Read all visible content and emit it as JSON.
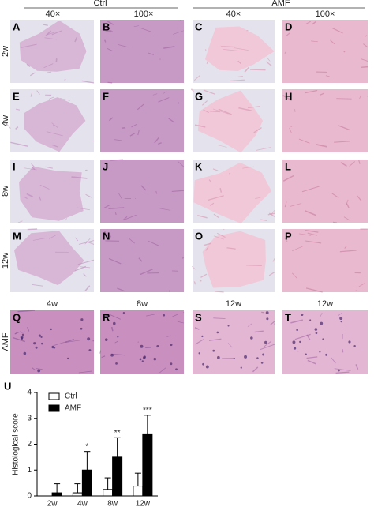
{
  "header": {
    "groups": [
      {
        "label": "Ctrl",
        "magnifications": [
          "40×",
          "100×"
        ]
      },
      {
        "label": "AMF",
        "magnifications": [
          "40×",
          "100×"
        ]
      }
    ]
  },
  "rows": [
    {
      "label": "2w",
      "panels": [
        "A",
        "B",
        "C",
        "D"
      ]
    },
    {
      "label": "4w",
      "panels": [
        "E",
        "F",
        "G",
        "H"
      ]
    },
    {
      "label": "8w",
      "panels": [
        "I",
        "J",
        "K",
        "L"
      ]
    },
    {
      "label": "12w",
      "panels": [
        "M",
        "N",
        "O",
        "P"
      ]
    },
    {
      "label": "AMF",
      "columns": [
        "4w",
        "8w",
        "12w",
        "12w"
      ],
      "panels": [
        "Q",
        "R",
        "S",
        "T"
      ]
    }
  ],
  "chart_data": {
    "type": "bar",
    "panel_label": "U",
    "ylabel": "Histological score",
    "categories": [
      "2w",
      "4w",
      "8w",
      "12w"
    ],
    "series": [
      {
        "name": "Ctrl",
        "color": "#ffffff",
        "values": [
          0,
          0.12,
          0.25,
          0.38
        ],
        "errors": [
          0,
          0.35,
          0.45,
          0.5
        ]
      },
      {
        "name": "AMF",
        "color": "#000000",
        "values": [
          0.12,
          1.0,
          1.5,
          2.4
        ],
        "errors": [
          0.35,
          0.72,
          0.75,
          0.72
        ],
        "significance": [
          null,
          "*",
          "**",
          "***"
        ]
      }
    ],
    "ylim": [
      0,
      4
    ],
    "yticks": [
      0,
      1,
      2,
      3,
      4
    ]
  }
}
